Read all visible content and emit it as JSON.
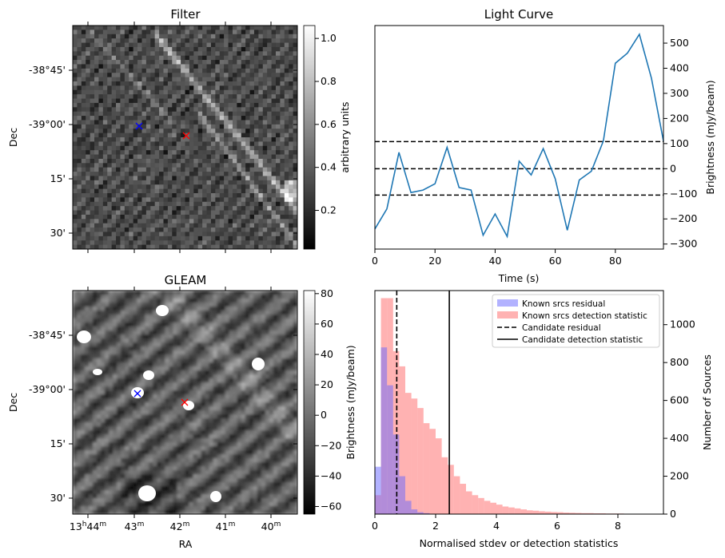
{
  "chart_data": [
    {
      "type": "heatmap",
      "title": "Filter",
      "ylabel": "Dec",
      "xlabel": "",
      "yticks": [
        "-38°45'",
        "-39°00'",
        "15'",
        "30'"
      ],
      "colorbar": {
        "label": "arbitrary units",
        "range": [
          0.02,
          1.06
        ],
        "ticks": [
          "0.2",
          "0.4",
          "0.6",
          "0.8",
          "1.0"
        ]
      },
      "markers": [
        {
          "name": "blue-cross",
          "color": "#0000ff"
        },
        {
          "name": "red-cross",
          "color": "#ff0000"
        }
      ]
    },
    {
      "type": "line",
      "title": "Light Curve",
      "xlabel": "Time (s)",
      "ylabel": "Brightness (mJy/beam)",
      "xlim": [
        0,
        96
      ],
      "ylim": [
        -320,
        570
      ],
      "xticks": [
        0,
        20,
        40,
        60,
        80
      ],
      "yticks": [
        -300,
        -200,
        -100,
        0,
        100,
        200,
        300,
        400,
        500
      ],
      "series": [
        {
          "color": "#1f77b4",
          "x": [
            0,
            4,
            8,
            12,
            16,
            20,
            24,
            28,
            32,
            36,
            40,
            44,
            48,
            52,
            56,
            60,
            64,
            68,
            72,
            76,
            80,
            84,
            88,
            92,
            96
          ],
          "y": [
            -240,
            -160,
            65,
            -95,
            -85,
            -60,
            85,
            -75,
            -85,
            -265,
            -180,
            -270,
            30,
            -25,
            80,
            -40,
            -245,
            -45,
            -10,
            110,
            420,
            460,
            535,
            360,
            110
          ]
        }
      ],
      "hlines": [
        {
          "y": 108,
          "style": "dashed"
        },
        {
          "y": 0,
          "style": "dashed"
        },
        {
          "y": -105,
          "style": "dashed"
        }
      ]
    },
    {
      "type": "heatmap",
      "title": "GLEAM",
      "ylabel": "Dec",
      "xlabel": "RA",
      "yticks": [
        "-38°45'",
        "-39°00'",
        "15'",
        "30'"
      ],
      "xticks": [
        {
          "hours": "13",
          "h": "h",
          "minutes": "44",
          "m": "m"
        },
        {
          "minutes": "43",
          "m": "m"
        },
        {
          "minutes": "42",
          "m": "m"
        },
        {
          "minutes": "41",
          "m": "m"
        },
        {
          "minutes": "40",
          "m": "m"
        }
      ],
      "colorbar": {
        "label": "Brightness (mJy/beam)",
        "range": [
          -65,
          82
        ],
        "ticks": [
          "−60",
          "−40",
          "−20",
          "0",
          "20",
          "40",
          "60",
          "80"
        ]
      },
      "markers": [
        {
          "name": "blue-cross",
          "color": "#0000ff"
        },
        {
          "name": "red-cross",
          "color": "#ff0000"
        }
      ]
    },
    {
      "type": "bar",
      "subtype": "histogram",
      "xlabel": "Normalised stdev or detection statistics",
      "ylabel": "Number of Sources",
      "xlim": [
        0,
        9.5
      ],
      "ylim": [
        0,
        1180
      ],
      "xticks": [
        0,
        2,
        4,
        6,
        8
      ],
      "yticks": [
        0,
        200,
        400,
        600,
        800,
        1000
      ],
      "bin_width": 0.2,
      "series": [
        {
          "name": "Known srcs residual",
          "color": "#6666ff",
          "bin_start": 0,
          "values": [
            250,
            880,
            680,
            420,
            200,
            70,
            25,
            10,
            5,
            2,
            0,
            0,
            0,
            0,
            0,
            0,
            0,
            0,
            0,
            0,
            0,
            0,
            0,
            0,
            0,
            0,
            0,
            0,
            0,
            0,
            0,
            0,
            0,
            0,
            0,
            0,
            0,
            0,
            0,
            0,
            0,
            0,
            0,
            0,
            0,
            0,
            0,
            0
          ]
        },
        {
          "name": "Known srcs detection statistic",
          "color": "#ff6666",
          "bin_start": 0,
          "values": [
            100,
            1140,
            1140,
            860,
            780,
            640,
            610,
            560,
            480,
            450,
            400,
            300,
            260,
            200,
            160,
            120,
            100,
            85,
            70,
            60,
            50,
            40,
            35,
            30,
            25,
            20,
            18,
            15,
            13,
            11,
            10,
            8,
            7,
            6,
            5,
            5,
            4,
            4,
            3,
            3,
            3,
            2,
            2,
            2,
            2,
            1,
            1,
            1
          ]
        }
      ],
      "vlines": [
        {
          "name": "Candidate residual",
          "x": 0.72,
          "style": "dashed"
        },
        {
          "name": "Candidate detection statistic",
          "x": 2.45,
          "style": "solid"
        }
      ],
      "legend": "top-right"
    }
  ]
}
